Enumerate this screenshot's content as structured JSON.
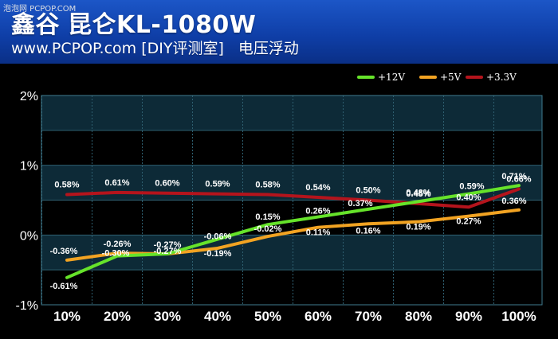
{
  "page": {
    "watermark": "泡泡网 PCPOP.COM",
    "title_brand": "鑫谷",
    "title_series": "昆仑",
    "title_model": "KL-1080W",
    "subtitle_site": "www.PCPOP.com [DIY评测室]",
    "subtitle_topic": "电压浮动"
  },
  "colors": {
    "header_bg": "#1c56c7",
    "plot_band": "#0d2a37",
    "grid": "#2e5f70",
    "series_12v": "#66e32a",
    "series_5v": "#f2a322",
    "series_33v": "#b4141c"
  },
  "chart_data": {
    "type": "line",
    "categories": [
      "10%",
      "20%",
      "30%",
      "40%",
      "50%",
      "60%",
      "70%",
      "80%",
      "90%",
      "100%"
    ],
    "y_tick_labels": [
      "2%",
      "1%",
      "0%",
      "-1%"
    ],
    "ylim": [
      -1,
      2
    ],
    "grid": true,
    "legend_position": "top-right",
    "series": [
      {
        "name": "+12V",
        "color": "#66e32a",
        "values": [
          -0.61,
          -0.3,
          -0.27,
          -0.06,
          0.15,
          0.26,
          0.37,
          0.48,
          0.59,
          0.71
        ],
        "labels": [
          "-0.61%",
          "-0.30%",
          "-0.27%",
          "-0.06%",
          "0.15%",
          "0.26%",
          "0.37%",
          "0.48%",
          "0.59%",
          "0.71%"
        ]
      },
      {
        "name": "+5V",
        "color": "#f2a322",
        "values": [
          -0.36,
          -0.26,
          -0.27,
          -0.19,
          -0.02,
          0.11,
          0.16,
          0.19,
          0.27,
          0.36
        ],
        "labels": [
          "-0.36%",
          "-0.26%",
          "-0.27%",
          "-0.19%",
          "-0.02%",
          "0.11%",
          "0.16%",
          "0.19%",
          "0.27%",
          "0.36%"
        ]
      },
      {
        "name": "+3.3V",
        "color": "#b4141c",
        "values": [
          0.58,
          0.61,
          0.6,
          0.59,
          0.58,
          0.54,
          0.5,
          0.45,
          0.4,
          0.66
        ],
        "labels": [
          "0.58%",
          "0.61%",
          "0.60%",
          "0.59%",
          "0.58%",
          "0.54%",
          "0.50%",
          "0.45%",
          "0.40%",
          "0.66%"
        ]
      }
    ]
  }
}
